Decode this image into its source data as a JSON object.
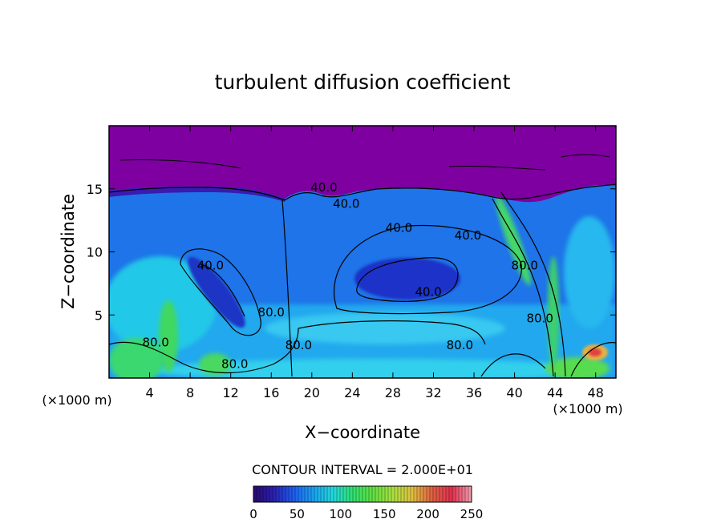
{
  "chart_data": {
    "type": "heatmap",
    "title": "turbulent diffusion coefficient",
    "xlabel": "X−coordinate",
    "ylabel": "Z−coordinate",
    "x_units_left": "(×1000 m)",
    "x_units_right": "(×1000 m)",
    "xlim": [
      0,
      50
    ],
    "ylim": [
      0,
      20
    ],
    "x_ticks": [
      4,
      8,
      12,
      16,
      20,
      24,
      28,
      32,
      36,
      40,
      44,
      48
    ],
    "y_ticks": [
      5,
      10,
      15
    ],
    "contour_interval_text": "CONTOUR INTERVAL = 2.000E+01",
    "colorbar": {
      "range": [
        0,
        250
      ],
      "ticks": [
        0,
        50,
        100,
        150,
        200,
        250
      ],
      "colors": [
        "#2a0a6e",
        "#2a1fb0",
        "#1e5cf0",
        "#1aa0f0",
        "#22d8e0",
        "#30e070",
        "#5ee040",
        "#a8e040",
        "#e0c040",
        "#e06040",
        "#e03050",
        "#f0a0b0"
      ]
    },
    "contour_labels": [
      {
        "text": "40.0",
        "x": 21.2,
        "y": 14.8
      },
      {
        "text": "40.0",
        "x": 23.4,
        "y": 13.5
      },
      {
        "text": "40.0",
        "x": 28.6,
        "y": 11.6
      },
      {
        "text": "40.0",
        "x": 35.4,
        "y": 11.0
      },
      {
        "text": "40.0",
        "x": 10.0,
        "y": 8.6
      },
      {
        "text": "40.0",
        "x": 31.5,
        "y": 6.5
      },
      {
        "text": "80.0",
        "x": 16.0,
        "y": 4.9
      },
      {
        "text": "80.0",
        "x": 12.4,
        "y": 0.8
      },
      {
        "text": "80.0",
        "x": 18.7,
        "y": 2.3
      },
      {
        "text": "80.0",
        "x": 34.6,
        "y": 2.3
      },
      {
        "text": "80.0",
        "x": 41.0,
        "y": 8.6
      },
      {
        "text": "80.0",
        "x": 42.5,
        "y": 4.4
      },
      {
        "text": "80.0",
        "x": 4.6,
        "y": 2.5
      }
    ],
    "regions": [
      {
        "level": 0,
        "kind": "background",
        "note": "stratosphere above z≈16"
      },
      {
        "level": 2,
        "kind": "blob",
        "x": 28,
        "y": 8,
        "rx": 7.5,
        "ry": 3.8
      },
      {
        "level": 5,
        "kind": "band",
        "x": 28,
        "y": 4.5,
        "rx": 16,
        "ry": 1.2
      }
    ]
  }
}
